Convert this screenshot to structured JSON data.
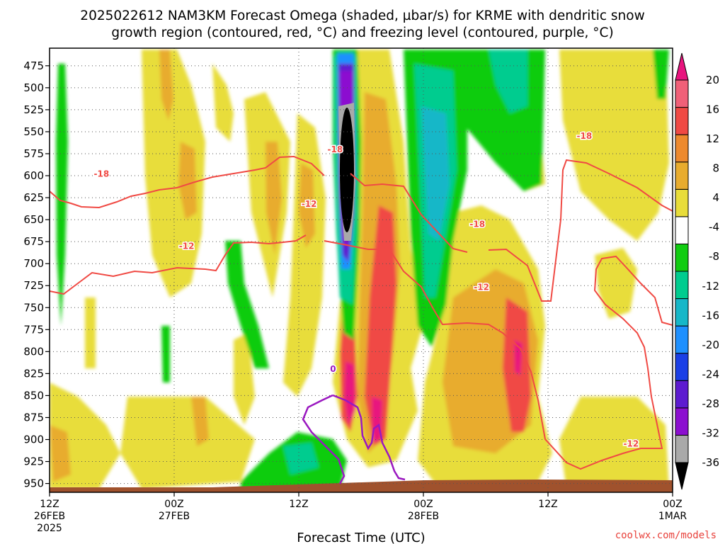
{
  "title": {
    "line1": "2025022612 NAM3KM Forecast Omega (shaded, µbar/s) for KRME with dendritic snow",
    "line2": "growth region (contoured, red, °C) and freezing level (contoured, purple, °C)"
  },
  "credit": "coolwx.com/models",
  "colors": {
    "contour_red": "#f04a44",
    "contour_purple": "#9a18c0",
    "ground": "#a0522d"
  },
  "chart_data": {
    "type": "heatmap",
    "xlabel": "Forecast Time (UTC)",
    "ylabel": "",
    "x_ticks": [
      {
        "hour": 0,
        "line1": "12Z",
        "line2": "26FEB",
        "line3": "2025"
      },
      {
        "hour": 12,
        "line1": "00Z",
        "line2": "27FEB",
        "line3": ""
      },
      {
        "hour": 24,
        "line1": "12Z",
        "line2": "",
        "line3": ""
      },
      {
        "hour": 36,
        "line1": "00Z",
        "line2": "28FEB",
        "line3": ""
      },
      {
        "hour": 48,
        "line1": "12Z",
        "line2": "",
        "line3": ""
      },
      {
        "hour": 60,
        "line1": "00Z",
        "line2": "1MAR",
        "line3": ""
      }
    ],
    "xlim": [
      0,
      60
    ],
    "y_ticks": [
      475,
      500,
      525,
      550,
      575,
      600,
      625,
      650,
      675,
      700,
      725,
      750,
      775,
      800,
      825,
      850,
      875,
      900,
      925,
      950
    ],
    "ylim": [
      960,
      455
    ],
    "grid": true,
    "colorbar": {
      "levels": [
        -36,
        -32,
        -28,
        -24,
        -20,
        -16,
        -12,
        -8,
        -4,
        4,
        8,
        12,
        16,
        20
      ],
      "labels": [
        "20",
        "16",
        "12",
        "8",
        "4",
        "-4",
        "-8",
        "-12",
        "-16",
        "-20",
        "-24",
        "-28",
        "-32",
        "-36"
      ],
      "colors": [
        "#000000",
        "#a9a9a9",
        "#8c0fd0",
        "#5d1bd0",
        "#1a3fe6",
        "#1e90ff",
        "#16b7c8",
        "#00cc8f",
        "#11cc11",
        "#ffffff",
        "#e8dd3a",
        "#e8ac2e",
        "#ed8a2e",
        "#f04a44",
        "#f06078",
        "#e8147e"
      ]
    },
    "contour_labels": [
      {
        "text": "-18",
        "hour": 5.0,
        "p": 598,
        "color": "red"
      },
      {
        "text": "-12",
        "hour": 13.2,
        "p": 680,
        "color": "red"
      },
      {
        "text": "-18",
        "hour": 27.5,
        "p": 570,
        "color": "red"
      },
      {
        "text": "-12",
        "hour": 25.0,
        "p": 632,
        "color": "red"
      },
      {
        "text": "-18",
        "hour": 41.2,
        "p": 655,
        "color": "red"
      },
      {
        "text": "-12",
        "hour": 41.6,
        "p": 727,
        "color": "red"
      },
      {
        "text": "-18",
        "hour": 51.5,
        "p": 555,
        "color": "red"
      },
      {
        "text": "-12",
        "hour": 56.0,
        "p": 905,
        "color": "red"
      },
      {
        "text": "0",
        "hour": 27.3,
        "p": 820,
        "color": "purple"
      }
    ]
  }
}
